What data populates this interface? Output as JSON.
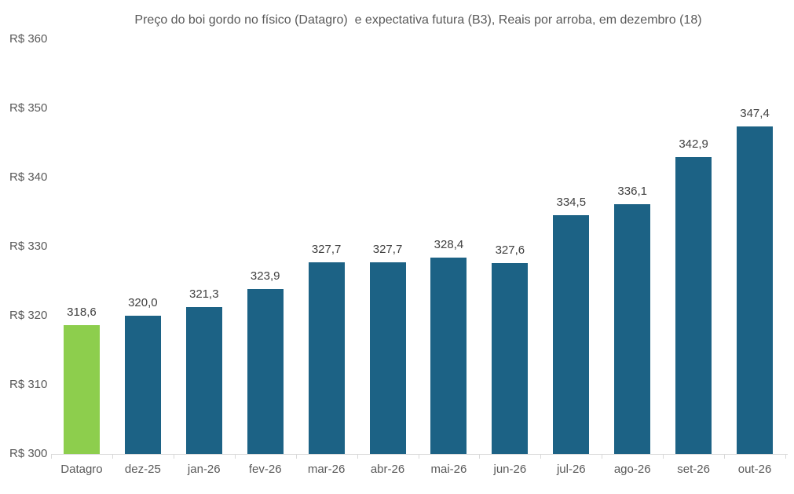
{
  "chart_data": {
    "type": "bar",
    "title": "Preço do boi gordo no físico (Datagro)  e expectativa futura (B3), Reais por arroba, em dezembro (18)",
    "categories": [
      "Datagro",
      "dez-25",
      "jan-26",
      "fev-26",
      "mar-26",
      "abr-26",
      "mai-26",
      "jun-26",
      "jul-26",
      "ago-26",
      "set-26",
      "out-26"
    ],
    "values": [
      318.6,
      320.0,
      321.3,
      323.9,
      327.7,
      327.7,
      328.4,
      327.6,
      334.5,
      336.1,
      342.9,
      347.4
    ],
    "value_labels": [
      "318,6",
      "320,0",
      "321,3",
      "323,9",
      "327,7",
      "327,7",
      "328,4",
      "327,6",
      "334,5",
      "336,1",
      "342,9",
      "347,4"
    ],
    "xlabel": "",
    "ylabel": "",
    "ylim": [
      300,
      360
    ],
    "y_tick_step": 10,
    "y_tick_labels": [
      "R$ 300",
      "R$ 310",
      "R$ 320",
      "R$ 330",
      "R$ 340",
      "R$ 350",
      "R$ 360"
    ],
    "grid": false,
    "legend_position": "none",
    "highlight_category": "Datagro",
    "colors": {
      "highlight_bar": "#8dce4d",
      "series_bar": "#1c6285",
      "title_text": "#595959",
      "axis_text": "#595959",
      "value_label_text": "#404040",
      "axis_line": "#d9d9d9",
      "background": "#ffffff"
    }
  }
}
